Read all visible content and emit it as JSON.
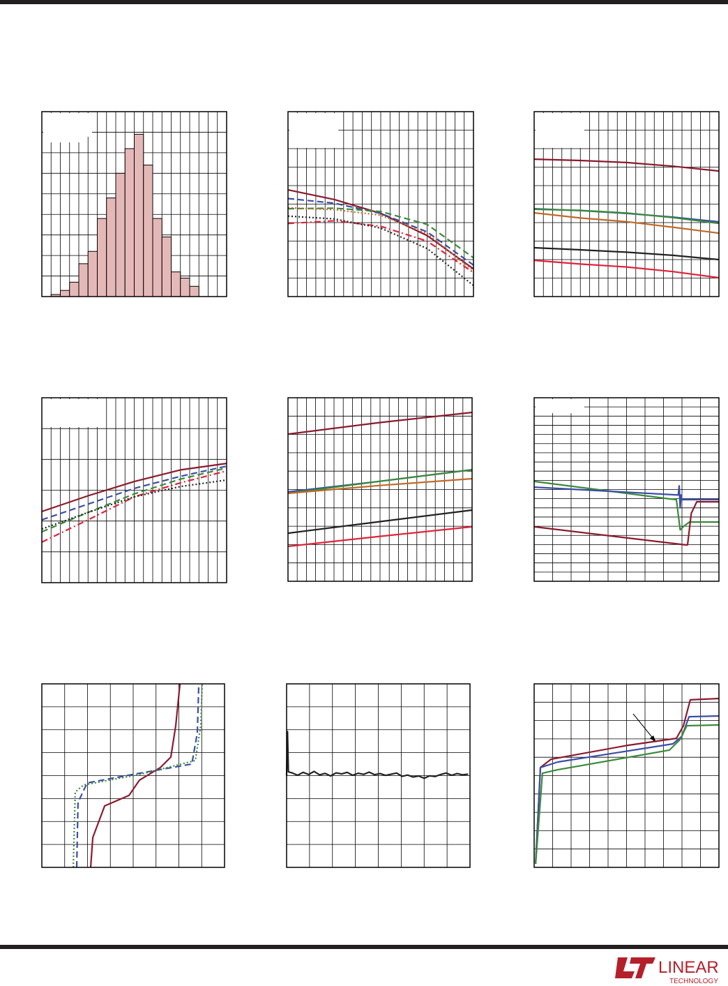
{
  "chart_data": [
    {
      "type": "histogram",
      "xlim": [
        0,
        20
      ],
      "ylim": [
        0,
        9
      ],
      "xticks": [
        0,
        1,
        2,
        3,
        4,
        5,
        6,
        7,
        8,
        9,
        10,
        11,
        12,
        13,
        14,
        15,
        16,
        17,
        18,
        19,
        20
      ],
      "yticks": [
        0,
        1,
        2,
        3,
        4,
        5,
        6,
        7,
        8,
        9
      ],
      "grid": true,
      "color": "#e5b8b8",
      "bins": [
        1,
        2,
        3,
        4,
        5,
        6,
        7,
        8,
        9,
        10,
        11,
        12,
        13,
        14,
        15,
        16,
        17
      ],
      "values": [
        0.1,
        0.3,
        0.7,
        1.6,
        2.2,
        3.8,
        4.8,
        6.0,
        7.2,
        7.9,
        6.4,
        3.8,
        2.9,
        1.2,
        0.9,
        0.5
      ]
    },
    {
      "type": "line",
      "xlim": [
        0,
        100
      ],
      "ylim": [
        0,
        100
      ],
      "xticks": [
        0,
        5,
        10,
        15,
        20,
        25,
        30,
        35,
        40,
        45,
        50,
        55,
        60,
        65,
        70,
        75,
        80,
        85,
        90,
        95,
        100
      ],
      "yticks": [
        0,
        10,
        20,
        30,
        40,
        50,
        60,
        70,
        80,
        90,
        100
      ],
      "grid": true,
      "x": [
        0,
        25,
        50,
        75,
        100
      ],
      "series": [
        {
          "color": "#8b1a2e",
          "style": "solid",
          "values": [
            57.7,
            52.5,
            45,
            33,
            15
          ]
        },
        {
          "color": "#3b4ea6",
          "style": "dashed",
          "values": [
            53,
            50.5,
            45,
            35,
            17
          ]
        },
        {
          "color": "#3a8a3a",
          "style": "dashed",
          "values": [
            47.5,
            47.8,
            46,
            39,
            21
          ]
        },
        {
          "color": "#c06a28",
          "style": "dotted",
          "values": [
            48,
            47,
            44,
            34,
            14
          ]
        },
        {
          "color": "#e0233a",
          "style": "dashdot",
          "values": [
            39.5,
            41,
            38,
            30,
            13
          ]
        },
        {
          "color": "#222222",
          "style": "dotted",
          "values": [
            43.5,
            42,
            37,
            26,
            6
          ]
        }
      ]
    },
    {
      "type": "line",
      "xlim": [
        0,
        100
      ],
      "ylim": [
        0,
        100
      ],
      "xticks": [
        0,
        5,
        10,
        15,
        20,
        25,
        30,
        35,
        40,
        45,
        50,
        55,
        60,
        65,
        70,
        75,
        80,
        85,
        90,
        95,
        100
      ],
      "yticks": [
        0,
        10,
        20,
        30,
        40,
        50,
        60,
        70,
        80,
        90,
        100
      ],
      "grid": true,
      "x": [
        0,
        25,
        50,
        75,
        100
      ],
      "series": [
        {
          "color": "#8b1a2e",
          "style": "solid",
          "values": [
            74.3,
            73.6,
            72.5,
            70.5,
            67.9
          ]
        },
        {
          "color": "#3b4ea6",
          "style": "solid",
          "values": [
            47.5,
            46.5,
            45,
            43,
            40.4
          ]
        },
        {
          "color": "#3a8a3a",
          "style": "solid",
          "values": [
            47.2,
            46.6,
            45.2,
            42.7,
            39.6
          ]
        },
        {
          "color": "#c06a28",
          "style": "solid",
          "values": [
            45.3,
            42.5,
            40.5,
            37.5,
            34.3
          ]
        },
        {
          "color": "#222222",
          "style": "solid",
          "values": [
            26.4,
            25.3,
            24,
            22.3,
            20
          ]
        },
        {
          "color": "#e0233a",
          "style": "solid",
          "values": [
            19.6,
            17.6,
            16,
            13.5,
            10.2
          ]
        }
      ]
    },
    {
      "type": "line",
      "xlim": [
        0,
        100
      ],
      "ylim": [
        0,
        120
      ],
      "xticks": [
        0,
        5,
        10,
        15,
        20,
        25,
        30,
        35,
        40,
        45,
        50,
        55,
        60,
        65,
        70,
        75,
        80,
        85,
        90,
        95,
        100
      ],
      "yticks": [
        0,
        20,
        40,
        60,
        80,
        100,
        120
      ],
      "grid": true,
      "x": [
        0,
        25,
        50,
        75,
        100
      ],
      "series": [
        {
          "color": "#8b1a2e",
          "style": "solid",
          "values": [
            46.2,
            56.4,
            65.6,
            73.2,
            77.4
          ]
        },
        {
          "color": "#3b4ea6",
          "style": "dashed",
          "values": [
            40.8,
            51,
            61.2,
            69,
            75.6
          ]
        },
        {
          "color": "#3a8a3a",
          "style": "dashed",
          "values": [
            33,
            45.6,
            57.6,
            67.2,
            74.4
          ]
        },
        {
          "color": "#e0233a",
          "style": "dashdot",
          "values": [
            26.3,
            40.8,
            55.7,
            64.8,
            72.5
          ]
        },
        {
          "color": "#222222",
          "style": "dotted",
          "values": [
            34.8,
            45.6,
            55.7,
            62.4,
            66.6
          ]
        }
      ]
    },
    {
      "type": "line",
      "xlim": [
        0,
        100
      ],
      "ylim": [
        0,
        100
      ],
      "xticks": [
        0,
        5,
        10,
        15,
        20,
        25,
        30,
        35,
        40,
        45,
        50,
        55,
        60,
        65,
        70,
        75,
        80,
        85,
        90,
        95,
        100
      ],
      "yticks": [
        0,
        10,
        20,
        30,
        40,
        50,
        60,
        70,
        80,
        90,
        100
      ],
      "grid": true,
      "x": [
        0,
        50,
        100
      ],
      "series": [
        {
          "color": "#8b1a2e",
          "style": "solid",
          "values": [
            80.2,
            86.5,
            92
          ]
        },
        {
          "color": "#3b4ea6",
          "style": "solid",
          "values": [
            48.7,
            54.5,
            60.8
          ]
        },
        {
          "color": "#3a8a3a",
          "style": "solid",
          "values": [
            47.9,
            54.5,
            60.8
          ]
        },
        {
          "color": "#c06a28",
          "style": "solid",
          "values": [
            47.9,
            52.2,
            55.9
          ]
        },
        {
          "color": "#222222",
          "style": "solid",
          "values": [
            26.2,
            32.5,
            38.8
          ]
        },
        {
          "color": "#e0233a",
          "style": "solid",
          "values": [
            19,
            24.5,
            29.7
          ]
        }
      ]
    },
    {
      "type": "line",
      "xlim": [
        0,
        100
      ],
      "ylim": [
        0,
        100
      ],
      "xticks": [
        0,
        10,
        20,
        30,
        40,
        50,
        60,
        70,
        80,
        90,
        100
      ],
      "yticks": [
        0,
        5,
        10,
        15,
        20,
        25,
        30,
        35,
        40,
        45,
        50,
        55,
        60,
        65,
        70,
        75,
        80,
        85,
        90,
        95,
        100
      ],
      "grid": true,
      "series": [
        {
          "color": "#3a8a3a",
          "style": "solid",
          "x": [
            0,
            73,
            77,
            79,
            81,
            84,
            100
          ],
          "values": [
            54.4,
            44.9,
            44.5,
            28,
            30,
            32.3,
            32.3
          ]
        },
        {
          "color": "#3b4ea6",
          "style": "solid",
          "x": [
            0,
            78,
            78.5,
            79,
            79.5,
            80,
            100
          ],
          "values": [
            51.3,
            47,
            52,
            40,
            47,
            44.5,
            44.5
          ]
        },
        {
          "color": "#8b1a2e",
          "style": "solid",
          "x": [
            0,
            82,
            83,
            85,
            88,
            100
          ],
          "values": [
            29.7,
            19.8,
            19.8,
            37,
            43.3,
            43.3
          ]
        }
      ]
    },
    {
      "type": "line",
      "xlim": [
        0,
        100
      ],
      "ylim": [
        0,
        100
      ],
      "xticks": [
        0,
        12.5,
        25,
        37.5,
        50,
        62.5,
        75,
        87.5,
        100
      ],
      "yticks": [
        0,
        12.5,
        25,
        37.5,
        50,
        62.5,
        75,
        87.5,
        100
      ],
      "grid": true,
      "series": [
        {
          "color": "#8b1a2e",
          "style": "solid",
          "x": [
            26.7,
            27.9,
            34.4,
            47.7,
            53.4,
            64.9,
            70.6,
            73.3,
            75.6
          ],
          "values": [
            0,
            16.3,
            33.5,
            39.2,
            47.5,
            54.4,
            60.1,
            77.2,
            100
          ]
        },
        {
          "color": "#3b4ea6",
          "style": "dashed",
          "x": [
            19.1,
            19.8,
            24.8,
            49.6,
            82.1,
            85.1,
            85.9
          ],
          "values": [
            0,
            35.4,
            46,
            50.6,
            56.3,
            73.4,
            100
          ]
        },
        {
          "color": "#3a8a3a",
          "style": "dotted",
          "x": [
            17.2,
            18.3,
            22.9,
            53.4,
            84,
            87,
            87.8
          ],
          "values": [
            0,
            41.1,
            44.9,
            50.6,
            58.2,
            77.2,
            100
          ]
        }
      ]
    },
    {
      "type": "line",
      "xlim": [
        0,
        100
      ],
      "ylim": [
        0,
        100
      ],
      "xticks": [
        0,
        12.5,
        25,
        37.5,
        50,
        62.5,
        75,
        87.5,
        100
      ],
      "yticks": [
        0,
        12.5,
        25,
        37.5,
        50,
        62.5,
        75,
        87.5,
        100
      ],
      "grid": true,
      "x": [
        0,
        0.5,
        1,
        3,
        6,
        9,
        12,
        15,
        18,
        21,
        24,
        27,
        30,
        33,
        36,
        39,
        42,
        45,
        48,
        51,
        54,
        57,
        60,
        63,
        66,
        69,
        72,
        75,
        78,
        81,
        84,
        87,
        90,
        93,
        96,
        99
      ],
      "series": [
        {
          "color": "#222222",
          "style": "solid",
          "values": [
            50,
            74,
            52,
            51.5,
            50.2,
            51.8,
            50.6,
            52.3,
            50.4,
            51.2,
            49.8,
            51.5,
            50.9,
            51.8,
            50.2,
            51.3,
            50.7,
            51.9,
            50.5,
            51.1,
            50.1,
            50.8,
            51.4,
            49.6,
            50.3,
            49.2,
            49.8,
            48.5,
            49.9,
            49.5,
            50.6,
            51.4,
            50.2,
            51.1,
            50.4,
            50.8
          ]
        }
      ]
    },
    {
      "type": "line",
      "xlim": [
        0,
        100
      ],
      "ylim": [
        0,
        100
      ],
      "xticks": [
        0,
        10,
        20,
        30,
        40,
        50,
        60,
        70,
        80,
        90,
        100
      ],
      "yticks": [
        0,
        10,
        20,
        30,
        40,
        50,
        60,
        70,
        80,
        90,
        100
      ],
      "grid": true,
      "series": [
        {
          "color": "#8b1a2e",
          "style": "solid",
          "x": [
            0.8,
            3.4,
            9.1,
            50.6,
            77,
            80.8,
            84.5,
            100
          ],
          "values": [
            1.9,
            54.4,
            58.9,
            66.5,
            70.3,
            77.2,
            91.3,
            92
          ]
        },
        {
          "color": "#3b4ea6",
          "style": "solid",
          "x": [
            0.8,
            3.4,
            12.8,
            75.1,
            80,
            83.8,
            100
          ],
          "values": [
            1.9,
            54.4,
            57.4,
            67.3,
            71.5,
            82.1,
            82.5
          ]
        },
        {
          "color": "#3a8a3a",
          "style": "solid",
          "x": [
            0.8,
            4.5,
            12.8,
            73.2,
            78.9,
            82.6,
            100
          ],
          "values": [
            1.9,
            51.3,
            53.2,
            63.9,
            69.6,
            77.2,
            77.6
          ]
        }
      ]
    }
  ],
  "footer": {
    "logo_name": "LINEAR",
    "logo_sub": "TECHNOLOGY"
  }
}
